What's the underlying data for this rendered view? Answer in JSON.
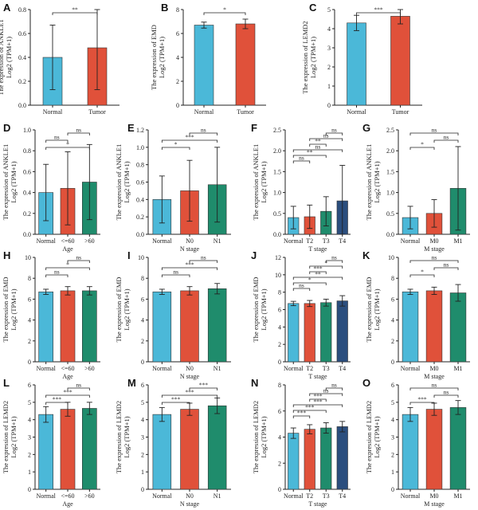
{
  "colors": {
    "normal": "#4bb8d8",
    "tumor": "#e0513a",
    "green": "#1f8c6c",
    "navy": "#2b4e7e",
    "line": "#222222"
  },
  "chart_data": [
    {
      "type": "bar",
      "panel": "A",
      "ylabel": [
        "The expression of ANKLE1",
        "Log2 (TPM+1)"
      ],
      "xlabel": "",
      "ylim": [
        0,
        0.8
      ],
      "yticks": [
        "0.0",
        "0.2",
        "0.4",
        "0.6",
        "0.8"
      ],
      "categories": [
        "Normal",
        "Tumor"
      ],
      "values": [
        0.4,
        0.48
      ],
      "errors": [
        0.27,
        0.35
      ],
      "colorKeys": [
        "normal",
        "tumor"
      ],
      "sig": [
        {
          "a": 0,
          "b": 1,
          "label": "**"
        }
      ]
    },
    {
      "type": "bar",
      "panel": "B",
      "ylabel": [
        "The expression of EMD",
        "Log2 (TPM+1)"
      ],
      "xlabel": "",
      "ylim": [
        0,
        8
      ],
      "yticks": [
        "0",
        "2",
        "4",
        "6",
        "8"
      ],
      "categories": [
        "Normal",
        "Tumor"
      ],
      "values": [
        6.7,
        6.8
      ],
      "errors": [
        0.25,
        0.4
      ],
      "colorKeys": [
        "normal",
        "tumor"
      ],
      "sig": [
        {
          "a": 0,
          "b": 1,
          "label": "*"
        }
      ]
    },
    {
      "type": "bar",
      "panel": "C",
      "ylabel": [
        "The expression of LEMD2",
        "Log2 (TPM+1)"
      ],
      "xlabel": "",
      "ylim": [
        0,
        5
      ],
      "yticks": [
        "0",
        "1",
        "2",
        "3",
        "4",
        "5"
      ],
      "categories": [
        "Normal",
        "Tumor"
      ],
      "values": [
        4.3,
        4.65
      ],
      "errors": [
        0.4,
        0.4
      ],
      "colorKeys": [
        "normal",
        "tumor"
      ],
      "sig": [
        {
          "a": 0,
          "b": 1,
          "label": "***"
        }
      ]
    },
    {
      "type": "bar",
      "panel": "D",
      "ylabel": [
        "The expression of ANKLE1",
        "Log2 (TPM+1)"
      ],
      "xlabel": "Age",
      "ylim": [
        0,
        1.0
      ],
      "yticks": [
        "0.0",
        "0.2",
        "0.4",
        "0.6",
        "0.8",
        "1.0"
      ],
      "categories": [
        "Normal",
        "<=60",
        ">60"
      ],
      "values": [
        0.4,
        0.44,
        0.5
      ],
      "errors": [
        0.27,
        0.35,
        0.36
      ],
      "colorKeys": [
        "normal",
        "tumor",
        "green"
      ],
      "sig": [
        {
          "a": 0,
          "b": 2,
          "label": "*"
        },
        {
          "a": 0,
          "b": 1,
          "label": "ns"
        },
        {
          "a": 1,
          "b": 2,
          "label": "ns"
        }
      ]
    },
    {
      "type": "bar",
      "panel": "E",
      "ylabel": [
        "The expression of ANKLE1",
        "Log2 (TPM+1)"
      ],
      "xlabel": "N stage",
      "ylim": [
        0,
        1.2
      ],
      "yticks": [
        "0.0",
        "0.2",
        "0.4",
        "0.6",
        "0.8",
        "1.0",
        "1.2"
      ],
      "categories": [
        "Normal",
        "N0",
        "N1"
      ],
      "values": [
        0.4,
        0.5,
        0.57
      ],
      "errors": [
        0.27,
        0.35,
        0.43
      ],
      "colorKeys": [
        "normal",
        "tumor",
        "green"
      ],
      "sig": [
        {
          "a": 0,
          "b": 1,
          "label": "*"
        },
        {
          "a": 0,
          "b": 2,
          "label": "***"
        },
        {
          "a": 1,
          "b": 2,
          "label": "ns"
        }
      ]
    },
    {
      "type": "bar",
      "panel": "F",
      "ylabel": [
        "The expression of ANKLE1",
        "Log2 (TPM+1)"
      ],
      "xlabel": "T stage",
      "ylim": [
        0,
        2.5
      ],
      "yticks": [
        "0.0",
        "0.5",
        "1.0",
        "1.5",
        "2.0",
        "2.5"
      ],
      "categories": [
        "Normal",
        "T2",
        "T3",
        "T4"
      ],
      "values": [
        0.4,
        0.42,
        0.55,
        0.8
      ],
      "errors": [
        0.27,
        0.28,
        0.35,
        0.85
      ],
      "colorKeys": [
        "normal",
        "tumor",
        "green",
        "navy"
      ],
      "sig": [
        {
          "a": 0,
          "b": 1,
          "label": "ns"
        },
        {
          "a": 0,
          "b": 2,
          "label": "**"
        },
        {
          "a": 0,
          "b": 3,
          "label": "ns"
        },
        {
          "a": 1,
          "b": 2,
          "label": "**"
        },
        {
          "a": 1,
          "b": 3,
          "label": "ns"
        },
        {
          "a": 2,
          "b": 3,
          "label": "ns"
        }
      ]
    },
    {
      "type": "bar",
      "panel": "G",
      "ylabel": [
        "The expression of ANKLE1",
        "Log2 (TPM+1)"
      ],
      "xlabel": "M stage",
      "ylim": [
        0,
        2.5
      ],
      "yticks": [
        "0.0",
        "0.5",
        "1.0",
        "1.5",
        "2.0",
        "2.5"
      ],
      "categories": [
        "Normal",
        "M0",
        "M1"
      ],
      "values": [
        0.4,
        0.5,
        1.1
      ],
      "errors": [
        0.27,
        0.33,
        1.0
      ],
      "colorKeys": [
        "normal",
        "tumor",
        "green"
      ],
      "sig": [
        {
          "a": 0,
          "b": 1,
          "label": "*"
        },
        {
          "a": 1,
          "b": 2,
          "label": "ns"
        },
        {
          "a": 0,
          "b": 2,
          "label": "ns"
        }
      ]
    },
    {
      "type": "bar",
      "panel": "H",
      "ylabel": [
        "The expression of EMD",
        "Log2 (TPM+1)"
      ],
      "xlabel": "Age",
      "ylim": [
        0,
        10
      ],
      "yticks": [
        "0",
        "2",
        "4",
        "6",
        "8",
        "10"
      ],
      "categories": [
        "Normal",
        "<=60",
        ">60"
      ],
      "values": [
        6.7,
        6.8,
        6.8
      ],
      "errors": [
        0.25,
        0.4,
        0.4
      ],
      "colorKeys": [
        "normal",
        "tumor",
        "green"
      ],
      "sig": [
        {
          "a": 0,
          "b": 1,
          "label": "ns"
        },
        {
          "a": 0,
          "b": 2,
          "label": "*"
        },
        {
          "a": 1,
          "b": 2,
          "label": "ns"
        }
      ]
    },
    {
      "type": "bar",
      "panel": "I",
      "ylabel": [
        "The expression of EMD",
        "Log2 (TPM+1)"
      ],
      "xlabel": "N stage",
      "ylim": [
        0,
        10
      ],
      "yticks": [
        "0",
        "2",
        "4",
        "6",
        "8",
        "10"
      ],
      "categories": [
        "Normal",
        "N0",
        "N1"
      ],
      "values": [
        6.7,
        6.8,
        7.0
      ],
      "errors": [
        0.25,
        0.4,
        0.5
      ],
      "colorKeys": [
        "normal",
        "tumor",
        "green"
      ],
      "sig": [
        {
          "a": 0,
          "b": 1,
          "label": "ns"
        },
        {
          "a": 0,
          "b": 2,
          "label": "***"
        },
        {
          "a": 1,
          "b": 2,
          "label": "ns"
        }
      ]
    },
    {
      "type": "bar",
      "panel": "J",
      "ylabel": [
        "The expression of EMD",
        "Log2 (TPM+1)"
      ],
      "xlabel": "T stage",
      "ylim": [
        0,
        12
      ],
      "yticks": [
        "0",
        "2",
        "4",
        "6",
        "8",
        "10",
        "12"
      ],
      "categories": [
        "Normal",
        "T2",
        "T3",
        "T4"
      ],
      "values": [
        6.7,
        6.7,
        6.8,
        7.0
      ],
      "errors": [
        0.25,
        0.35,
        0.4,
        0.6
      ],
      "colorKeys": [
        "normal",
        "tumor",
        "green",
        "navy"
      ],
      "sig": [
        {
          "a": 0,
          "b": 1,
          "label": "ns"
        },
        {
          "a": 0,
          "b": 2,
          "label": "*"
        },
        {
          "a": 0,
          "b": 3,
          "label": "**"
        },
        {
          "a": 1,
          "b": 2,
          "label": "***"
        },
        {
          "a": 1,
          "b": 3,
          "label": "*"
        },
        {
          "a": 2,
          "b": 3,
          "label": "ns"
        }
      ]
    },
    {
      "type": "bar",
      "panel": "K",
      "ylabel": [
        "The expression of EMD",
        "Log2 (TPM+1)"
      ],
      "xlabel": "M stage",
      "ylim": [
        0,
        10
      ],
      "yticks": [
        "0",
        "2",
        "4",
        "6",
        "8",
        "10"
      ],
      "categories": [
        "Normal",
        "M0",
        "M1"
      ],
      "values": [
        6.7,
        6.8,
        6.6
      ],
      "errors": [
        0.25,
        0.35,
        0.8
      ],
      "colorKeys": [
        "normal",
        "tumor",
        "green"
      ],
      "sig": [
        {
          "a": 0,
          "b": 1,
          "label": "*"
        },
        {
          "a": 1,
          "b": 2,
          "label": "ns"
        },
        {
          "a": 0,
          "b": 2,
          "label": "ns"
        }
      ]
    },
    {
      "type": "bar",
      "panel": "L",
      "ylabel": [
        "The expression of LEMD2",
        "Log2 (TPM+1)"
      ],
      "xlabel": "Age",
      "ylim": [
        0,
        6
      ],
      "yticks": [
        "0",
        "1",
        "2",
        "3",
        "4",
        "5",
        "6"
      ],
      "categories": [
        "Normal",
        "<=60",
        ">60"
      ],
      "values": [
        4.3,
        4.6,
        4.65
      ],
      "errors": [
        0.45,
        0.4,
        0.35
      ],
      "colorKeys": [
        "normal",
        "tumor",
        "green"
      ],
      "sig": [
        {
          "a": 0,
          "b": 1,
          "label": "***"
        },
        {
          "a": 0,
          "b": 2,
          "label": "***"
        },
        {
          "a": 1,
          "b": 2,
          "label": "ns"
        }
      ]
    },
    {
      "type": "bar",
      "panel": "M",
      "ylabel": [
        "The expression of LEMD2",
        "Log2 (TPM+1)"
      ],
      "xlabel": "N stage",
      "ylim": [
        0,
        6
      ],
      "yticks": [
        "0",
        "1",
        "2",
        "3",
        "4",
        "5",
        "6"
      ],
      "categories": [
        "Normal",
        "N0",
        "N1"
      ],
      "values": [
        4.3,
        4.6,
        4.8
      ],
      "errors": [
        0.4,
        0.35,
        0.45
      ],
      "colorKeys": [
        "normal",
        "tumor",
        "green"
      ],
      "sig": [
        {
          "a": 0,
          "b": 1,
          "label": "***"
        },
        {
          "a": 0,
          "b": 2,
          "label": "***"
        },
        {
          "a": 1,
          "b": 2,
          "label": "***"
        }
      ]
    },
    {
      "type": "bar",
      "panel": "N",
      "ylabel": [
        "The expression of LEMD2",
        "Log2 (TPM+1)"
      ],
      "xlabel": "T stage",
      "ylim": [
        0,
        8
      ],
      "yticks": [
        "0",
        "2",
        "4",
        "6",
        "8"
      ],
      "categories": [
        "Normal",
        "T2",
        "T3",
        "T4"
      ],
      "values": [
        4.3,
        4.6,
        4.7,
        4.8
      ],
      "errors": [
        0.4,
        0.35,
        0.4,
        0.4
      ],
      "colorKeys": [
        "normal",
        "tumor",
        "green",
        "navy"
      ],
      "sig": [
        {
          "a": 0,
          "b": 1,
          "label": "***"
        },
        {
          "a": 0,
          "b": 2,
          "label": "***"
        },
        {
          "a": 0,
          "b": 3,
          "label": "***"
        },
        {
          "a": 1,
          "b": 2,
          "label": "***"
        },
        {
          "a": 1,
          "b": 3,
          "label": "ns"
        },
        {
          "a": 2,
          "b": 3,
          "label": "ns"
        }
      ]
    },
    {
      "type": "bar",
      "panel": "O",
      "ylabel": [
        "The expression of LEMD2",
        "Log2 (TPM+1)"
      ],
      "xlabel": "M stage",
      "ylim": [
        0,
        6
      ],
      "yticks": [
        "0",
        "1",
        "2",
        "3",
        "4",
        "5",
        "6"
      ],
      "categories": [
        "Normal",
        "M0",
        "M1"
      ],
      "values": [
        4.3,
        4.6,
        4.7
      ],
      "errors": [
        0.4,
        0.35,
        0.4
      ],
      "colorKeys": [
        "normal",
        "tumor",
        "green"
      ],
      "sig": [
        {
          "a": 0,
          "b": 1,
          "label": "***"
        },
        {
          "a": 1,
          "b": 2,
          "label": "ns"
        },
        {
          "a": 0,
          "b": 2,
          "label": "ns"
        }
      ]
    }
  ]
}
